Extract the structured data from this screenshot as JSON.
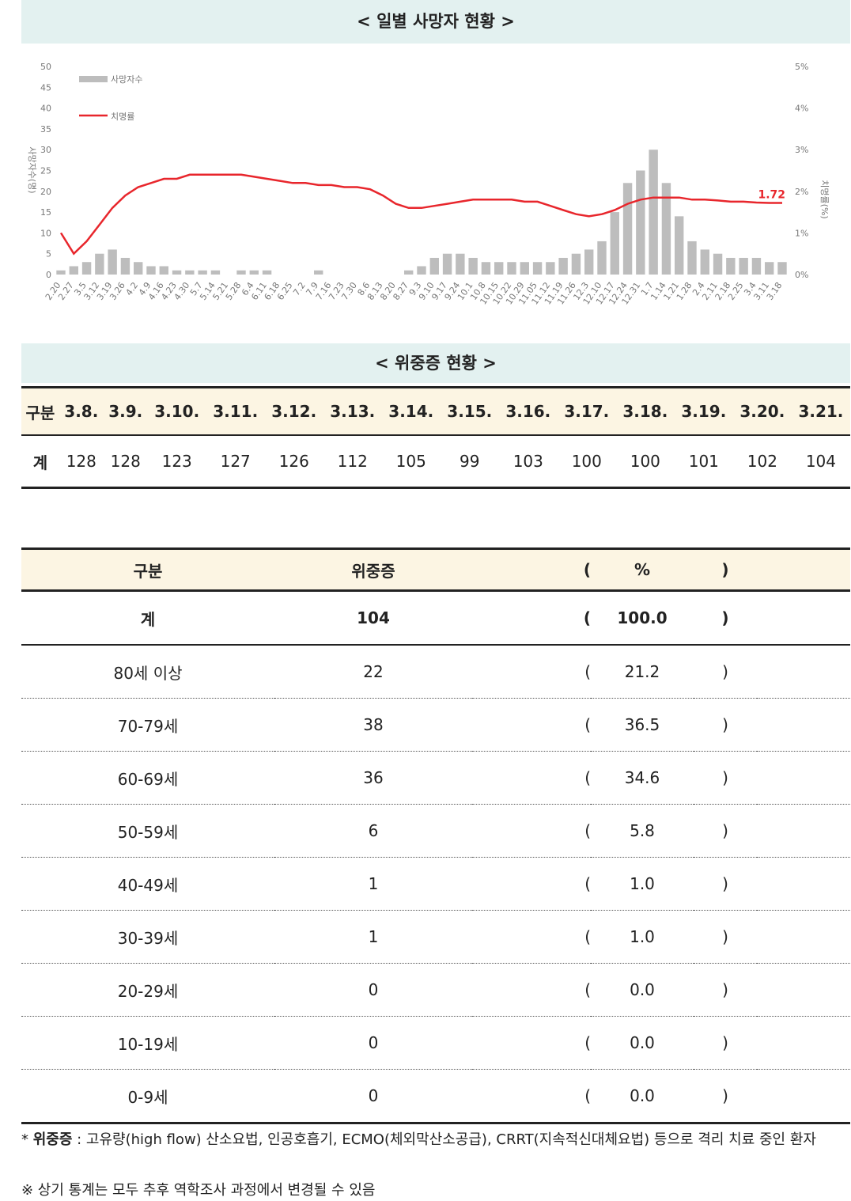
{
  "chart_section": {
    "title": "< 일별 사망자 현황 >"
  },
  "chart_data": {
    "type": "bar",
    "title": "",
    "legend": [
      "사망자수",
      "치명률"
    ],
    "ylabel_left": "사망자수(명)",
    "ylabel_right": "치명률(%)",
    "y_left_ticks": [
      "0",
      "5",
      "10",
      "15",
      "20",
      "25",
      "30",
      "35",
      "40",
      "45",
      "50"
    ],
    "y_right_ticks": [
      "0%",
      "1%",
      "2%",
      "3%",
      "4%",
      "5%"
    ],
    "ylim_left": [
      0,
      50
    ],
    "ylim_right": [
      0,
      5
    ],
    "x_ticks": [
      "2.20",
      "2.27",
      "3.5",
      "3.12",
      "3.19",
      "3.26",
      "4.2",
      "4.9",
      "4.16",
      "4.23",
      "4.30",
      "5.7",
      "5.14",
      "5.21",
      "5.28",
      "6.4",
      "6.11",
      "6.18",
      "6.25",
      "7.2",
      "7.9",
      "7.16",
      "7.23",
      "7.30",
      "8.6",
      "8.13",
      "8.20",
      "8.27",
      "9.3",
      "9.10",
      "9.17",
      "9.24",
      "10.1",
      "10.8",
      "10.15",
      "10.22",
      "10.29",
      "11.05",
      "11.12",
      "11.19",
      "11.26",
      "12.3",
      "12.10",
      "12.17",
      "12.24",
      "12.31",
      "1.7",
      "1.14",
      "1.21",
      "1.28",
      "2.4",
      "2.11",
      "2.18",
      "2.25",
      "3.4",
      "3.11",
      "3.18"
    ],
    "deaths_weekly_approx": [
      1,
      2,
      3,
      5,
      6,
      4,
      3,
      2,
      2,
      1,
      1,
      1,
      1,
      0,
      1,
      1,
      1,
      0,
      0,
      0,
      1,
      0,
      0,
      0,
      0,
      0,
      0,
      1,
      2,
      4,
      5,
      5,
      4,
      3,
      3,
      3,
      3,
      3,
      3,
      4,
      5,
      6,
      8,
      15,
      22,
      25,
      30,
      22,
      14,
      8,
      6,
      5,
      4,
      4,
      4,
      3,
      3
    ],
    "fatality_rate_pct": [
      1.0,
      0.5,
      0.8,
      1.2,
      1.6,
      1.9,
      2.1,
      2.2,
      2.3,
      2.3,
      2.4,
      2.4,
      2.4,
      2.4,
      2.4,
      2.35,
      2.3,
      2.25,
      2.2,
      2.2,
      2.15,
      2.15,
      2.1,
      2.1,
      2.05,
      1.9,
      1.7,
      1.6,
      1.6,
      1.65,
      1.7,
      1.75,
      1.8,
      1.8,
      1.8,
      1.8,
      1.75,
      1.75,
      1.65,
      1.55,
      1.45,
      1.4,
      1.45,
      1.55,
      1.7,
      1.8,
      1.85,
      1.85,
      1.85,
      1.8,
      1.8,
      1.78,
      1.75,
      1.75,
      1.73,
      1.72,
      1.72
    ],
    "annotation": "1.72",
    "colors": {
      "bars": "#bdbdbd",
      "line": "#e8262c"
    }
  },
  "severe_section": {
    "title": "< 위중증 현황 >"
  },
  "daily_table": {
    "header_label": "구분",
    "dates": [
      "3.8.",
      "3.9.",
      "3.10.",
      "3.11.",
      "3.12.",
      "3.13.",
      "3.14.",
      "3.15.",
      "3.16.",
      "3.17.",
      "3.18.",
      "3.19.",
      "3.20.",
      "3.21."
    ],
    "row_label": "계",
    "values": [
      "128",
      "128",
      "123",
      "127",
      "126",
      "112",
      "105",
      "99",
      "103",
      "100",
      "100",
      "101",
      "102",
      "104"
    ]
  },
  "age_table": {
    "headers": {
      "category": "구분",
      "severe": "위중증",
      "open": "(",
      "pct": "%",
      "close": ")"
    },
    "total": {
      "label": "계",
      "value": "104",
      "pct": "100.0"
    },
    "rows": [
      {
        "label": "80세 이상",
        "value": "22",
        "pct": "21.2"
      },
      {
        "label": "70-79세",
        "value": "38",
        "pct": "36.5"
      },
      {
        "label": "60-69세",
        "value": "36",
        "pct": "34.6"
      },
      {
        "label": "50-59세",
        "value": "6",
        "pct": "5.8"
      },
      {
        "label": "40-49세",
        "value": "1",
        "pct": "1.0"
      },
      {
        "label": "30-39세",
        "value": "1",
        "pct": "1.0"
      },
      {
        "label": "20-29세",
        "value": "0",
        "pct": "0.0"
      },
      {
        "label": "10-19세",
        "value": "0",
        "pct": "0.0"
      },
      {
        "label": "0-9세",
        "value": "0",
        "pct": "0.0"
      }
    ]
  },
  "notes": {
    "asterisk": "*",
    "term": "위중증",
    "definition": " : 고유량(high flow) 산소요법, 인공호흡기, ECMO(체외막산소공급), CRRT(지속적신대체요법) 등으로 격리 치료 중인 환자",
    "disclaimer": "※ 상기 통계는 모두 추후 역학조사 과정에서 변경될 수 있음"
  }
}
